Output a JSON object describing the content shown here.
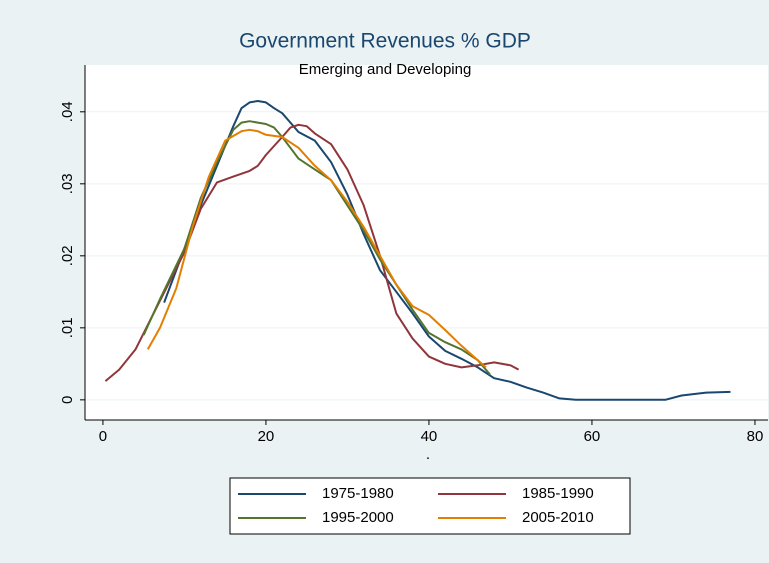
{
  "chart_data": {
    "type": "line",
    "title": "Government Revenues % GDP",
    "subtitle": "Emerging and Developing",
    "x_label": ".",
    "xlim": [
      -2.2,
      81.6
    ],
    "ylim": [
      -0.0028,
      0.0465
    ],
    "xticks": [
      0,
      20,
      40,
      60,
      80
    ],
    "yticks": [
      {
        "value": 0,
        "label": "0"
      },
      {
        "value": 0.01,
        "label": ".01"
      },
      {
        "value": 0.02,
        "label": ".02"
      },
      {
        "value": 0.03,
        "label": ".03"
      },
      {
        "value": 0.04,
        "label": ".04"
      }
    ],
    "grid": true,
    "legend": "bottom",
    "series": [
      {
        "name": "1975-1980",
        "color": "#1a476f",
        "x": [
          7.5,
          10,
          12,
          14,
          16,
          17,
          18,
          19,
          20,
          21,
          22,
          23,
          24,
          26,
          28,
          30,
          32,
          34,
          36,
          38,
          40,
          42,
          44,
          46,
          48,
          50,
          52,
          54,
          56,
          58,
          60,
          65,
          69,
          71,
          74,
          77
        ],
        "values": [
          0.0135,
          0.021,
          0.027,
          0.0325,
          0.038,
          0.0405,
          0.0413,
          0.0415,
          0.0413,
          0.0405,
          0.0398,
          0.0385,
          0.0372,
          0.036,
          0.033,
          0.0285,
          0.023,
          0.018,
          0.015,
          0.012,
          0.0088,
          0.0068,
          0.0057,
          0.0045,
          0.003,
          0.0025,
          0.0017,
          0.001,
          0.0002,
          0,
          0,
          0,
          0,
          0.0006,
          0.001,
          0.0011
        ]
      },
      {
        "name": "1985-1990",
        "color": "#90353b",
        "x": [
          0.3,
          2,
          4,
          6,
          8,
          10,
          12,
          14,
          16,
          18,
          19,
          20,
          22,
          23,
          24,
          25,
          26,
          28,
          30,
          32,
          34,
          36,
          38,
          40,
          42,
          44,
          46,
          48,
          50,
          51
        ],
        "values": [
          0.0026,
          0.0042,
          0.007,
          0.0115,
          0.016,
          0.0205,
          0.0265,
          0.0302,
          0.031,
          0.0318,
          0.0325,
          0.034,
          0.0365,
          0.0378,
          0.0382,
          0.038,
          0.037,
          0.0355,
          0.032,
          0.027,
          0.02,
          0.012,
          0.0085,
          0.006,
          0.005,
          0.0045,
          0.0048,
          0.0052,
          0.0048,
          0.0042
        ]
      },
      {
        "name": "1995-2000",
        "color": "#55752f",
        "x": [
          5,
          7,
          10,
          12,
          14,
          16,
          17,
          18,
          19,
          20,
          21,
          22,
          23,
          24,
          26,
          28,
          30,
          32,
          34,
          36,
          38,
          40,
          42,
          44,
          46,
          47.5
        ],
        "values": [
          0.009,
          0.014,
          0.021,
          0.028,
          0.033,
          0.0375,
          0.0385,
          0.0387,
          0.0385,
          0.0383,
          0.0378,
          0.0365,
          0.035,
          0.0335,
          0.032,
          0.0305,
          0.027,
          0.0235,
          0.0195,
          0.016,
          0.0125,
          0.0093,
          0.008,
          0.007,
          0.0055,
          0.0035
        ]
      },
      {
        "name": "2005-2010",
        "color": "#e37e00",
        "x": [
          5.5,
          7,
          9,
          11,
          13,
          15,
          17,
          18,
          19,
          20,
          22,
          24,
          26,
          28,
          30,
          32,
          34,
          36,
          38,
          40,
          42,
          44,
          46,
          47
        ],
        "values": [
          0.007,
          0.01,
          0.0155,
          0.024,
          0.031,
          0.036,
          0.0373,
          0.0375,
          0.0373,
          0.0368,
          0.0365,
          0.035,
          0.0325,
          0.0305,
          0.0275,
          0.024,
          0.02,
          0.016,
          0.013,
          0.0118,
          0.0097,
          0.0075,
          0.0055,
          0.0045
        ]
      }
    ]
  }
}
